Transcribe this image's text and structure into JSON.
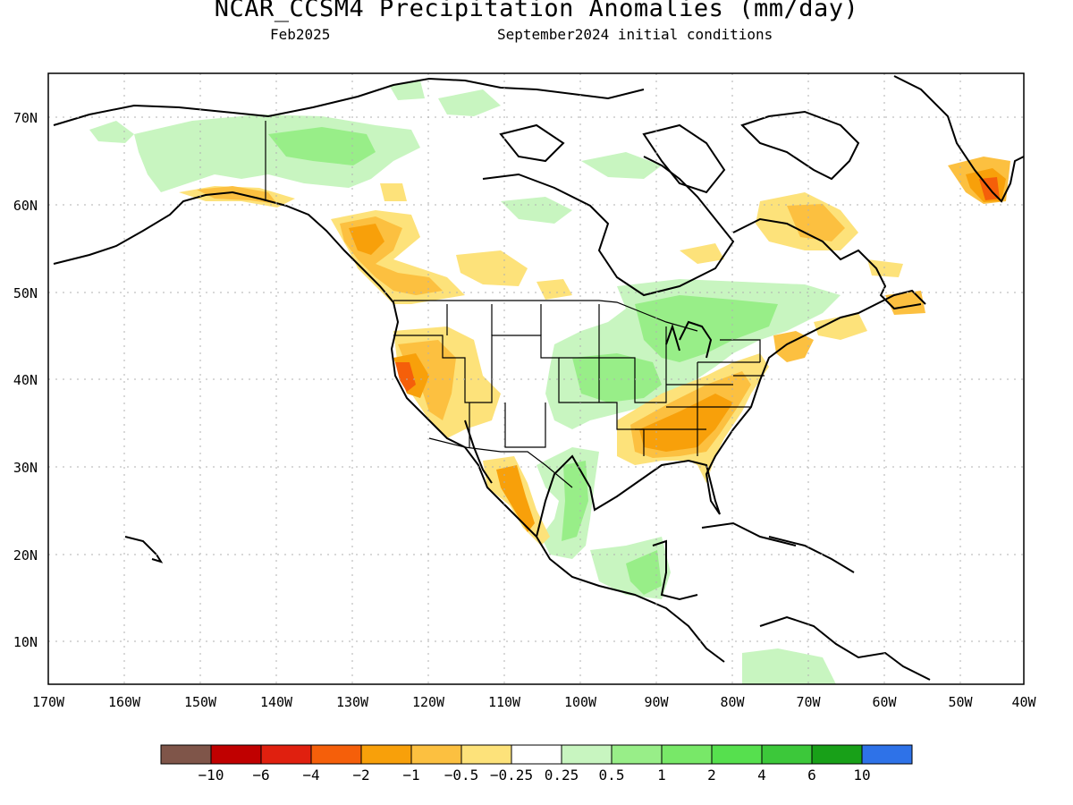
{
  "title": "NCAR_CCSM4 Precipitation Anomalies (mm/day)",
  "subtitle_left": "Feb2025",
  "subtitle_right": "September2024 initial conditions",
  "map": {
    "lat_labels": [
      "70N",
      "60N",
      "50N",
      "40N",
      "30N",
      "20N",
      "10N"
    ],
    "lon_labels": [
      "170W",
      "160W",
      "150W",
      "140W",
      "130W",
      "120W",
      "110W",
      "100W",
      "90W",
      "80W",
      "70W",
      "60W",
      "50W",
      "40W"
    ]
  },
  "legend": {
    "colors": [
      "#7f5549",
      "#c00000",
      "#e0200f",
      "#f55f0a",
      "#f8a00a",
      "#fcc040",
      "#fde27a",
      "#ffffff",
      "#c8f5c0",
      "#98ee88",
      "#78e868",
      "#56e04e",
      "#3cc83a",
      "#18a018",
      "#2e72e8"
    ],
    "labels": [
      "−10",
      "−6",
      "−4",
      "−2",
      "−1",
      "−0.5",
      "−0.25",
      "0.25",
      "0.5",
      "1",
      "2",
      "4",
      "6",
      "10"
    ]
  }
}
